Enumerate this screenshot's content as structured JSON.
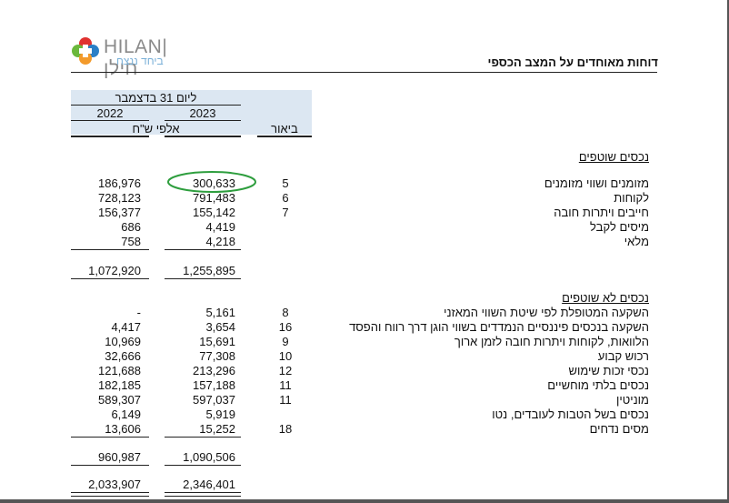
{
  "logo": {
    "brand_latin": "HILAN",
    "brand_hebrew": "חילן",
    "tagline": "ביחד ננצח",
    "colors": {
      "red": "#e0312f",
      "green": "#6bb83c",
      "blue": "#2a7fc7",
      "orange": "#f39a2b",
      "teal": "#2bb3a8"
    }
  },
  "header": {
    "title": "דוחות מאוחדים על המצב הכספי"
  },
  "columns": {
    "date_label": "ליום 31 בדצמבר",
    "year_2023": "2023",
    "year_2022": "2022",
    "units": "אלפי ש\"ח",
    "note_header": "ביאור"
  },
  "current_assets": {
    "title": "נכסים שוטפים",
    "rows": [
      {
        "label": "מזומנים ושווי מזומנים",
        "note": "5",
        "v2023": "300,633",
        "v2022": "186,976"
      },
      {
        "label": "לקוחות",
        "note": "6",
        "v2023": "791,483",
        "v2022": "728,123"
      },
      {
        "label": "חייבים ויתרות חובה",
        "note": "7",
        "v2023": "155,142",
        "v2022": "156,377"
      },
      {
        "label": "מיסים לקבל",
        "note": "",
        "v2023": "4,419",
        "v2022": "686"
      },
      {
        "label": "מלאי",
        "note": "",
        "v2023": "4,218",
        "v2022": "758"
      }
    ],
    "total": {
      "v2023": "1,255,895",
      "v2022": "1,072,920"
    }
  },
  "non_current_assets": {
    "title": "נכסים לא שוטפים",
    "rows": [
      {
        "label": "השקעה המטופלת לפי שיטת השווי המאזני",
        "note": "8",
        "v2023": "5,161",
        "v2022": "-"
      },
      {
        "label": "השקעה בנכסים פיננסיים הנמדדים בשווי הוגן דרך רווח והפסד",
        "note": "16",
        "v2023": "3,654",
        "v2022": "4,417"
      },
      {
        "label": "הלוואות, לקוחות ויתרות חובה לזמן ארוך",
        "note": "9",
        "v2023": "15,691",
        "v2022": "10,969"
      },
      {
        "label": "רכוש קבוע",
        "note": "10",
        "v2023": "77,308",
        "v2022": "32,666"
      },
      {
        "label": "נכסי זכות שימוש",
        "note": "12",
        "v2023": "213,296",
        "v2022": "121,688"
      },
      {
        "label": "נכסים בלתי מוחשיים",
        "note": "11",
        "v2023": "157,188",
        "v2022": "182,185"
      },
      {
        "label": "מוניטין",
        "note": "11",
        "v2023": "597,037",
        "v2022": "589,307"
      },
      {
        "label": "נכסים בשל הטבות לעובדים, נטו",
        "note": "",
        "v2023": "5,919",
        "v2022": "6,149"
      },
      {
        "label": "מסים נדחים",
        "note": "18",
        "v2023": "15,252",
        "v2022": "13,606"
      }
    ],
    "total": {
      "v2023": "1,090,506",
      "v2022": "960,987"
    }
  },
  "grand_total": {
    "v2023": "2,346,401",
    "v2022": "2,033,907"
  },
  "highlight": {
    "color": "#2e9e3e",
    "target": "current_assets.rows.0.v2023"
  }
}
